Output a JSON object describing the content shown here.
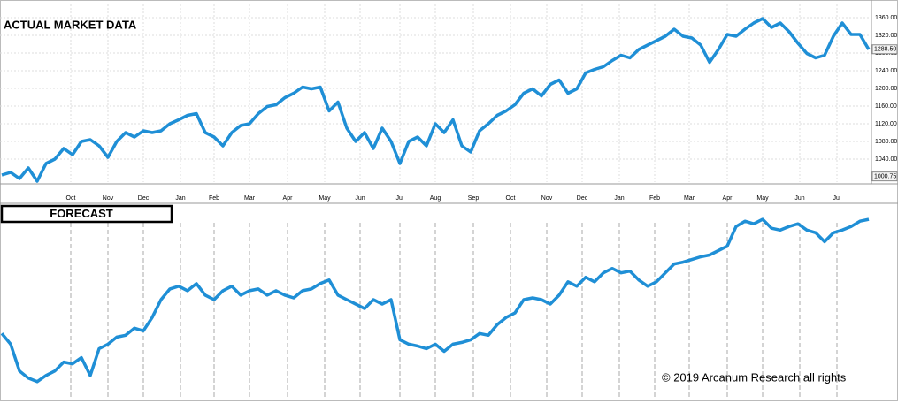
{
  "chart_data": [
    {
      "type": "line",
      "title": "ACTUAL MARKET DATA",
      "color": "#1f8fd6",
      "values": [
        1004,
        1010,
        996,
        1020,
        990,
        1030,
        1040,
        1064,
        1050,
        1080,
        1084,
        1070,
        1044,
        1080,
        1100,
        1090,
        1104,
        1100,
        1104,
        1120,
        1129,
        1139,
        1143,
        1100,
        1090,
        1070,
        1100,
        1116,
        1120,
        1143,
        1159,
        1163,
        1179,
        1189,
        1203,
        1199,
        1203,
        1149,
        1169,
        1110,
        1080,
        1100,
        1064,
        1110,
        1080,
        1030,
        1080,
        1090,
        1070,
        1120,
        1100,
        1129,
        1070,
        1056,
        1104,
        1120,
        1139,
        1149,
        1163,
        1189,
        1199,
        1183,
        1209,
        1219,
        1189,
        1199,
        1235,
        1243,
        1249,
        1263,
        1275,
        1269,
        1288,
        1298,
        1308,
        1318,
        1334,
        1318,
        1314,
        1298,
        1259,
        1288,
        1322,
        1318,
        1334,
        1348,
        1358,
        1338,
        1348,
        1328,
        1302,
        1279,
        1269,
        1275,
        1318,
        1348,
        1322,
        1322,
        1288
      ],
      "xlim": [
        -0.2,
        98.3
      ],
      "ylim": [
        988,
        1390
      ],
      "yticks": [
        {
          "value": 1040,
          "label": "1040.00"
        },
        {
          "value": 1080,
          "label": "1080.00"
        },
        {
          "value": 1120,
          "label": "1120.00"
        },
        {
          "value": 1160,
          "label": "1160.00"
        },
        {
          "value": 1200,
          "label": "1200.00"
        },
        {
          "value": 1240,
          "label": "1240.00"
        },
        {
          "value": 1280,
          "label": "1280.00"
        },
        {
          "value": 1320,
          "label": "1320.00"
        },
        {
          "value": 1360,
          "label": "1360.00"
        }
      ],
      "xticks": [
        {
          "value": 7.8,
          "label": "Oct"
        },
        {
          "value": 12.0,
          "label": "Nov"
        },
        {
          "value": 16.0,
          "label": "Dec"
        },
        {
          "value": 20.2,
          "label": "Jan"
        },
        {
          "value": 24.0,
          "label": "Feb"
        },
        {
          "value": 28.0,
          "label": "Mar"
        },
        {
          "value": 32.3,
          "label": "Apr"
        },
        {
          "value": 36.5,
          "label": "May"
        },
        {
          "value": 40.5,
          "label": "Jun"
        },
        {
          "value": 45.0,
          "label": "Jul"
        },
        {
          "value": 49.0,
          "label": "Aug"
        },
        {
          "value": 53.3,
          "label": "Sep"
        },
        {
          "value": 57.5,
          "label": "Oct"
        },
        {
          "value": 61.6,
          "label": "Nov"
        },
        {
          "value": 65.6,
          "label": "Dec"
        },
        {
          "value": 69.8,
          "label": "Jan"
        },
        {
          "value": 73.8,
          "label": "Feb"
        },
        {
          "value": 77.7,
          "label": "Mar"
        },
        {
          "value": 82.0,
          "label": "Apr"
        },
        {
          "value": 86.0,
          "label": "May"
        },
        {
          "value": 90.2,
          "label": "Jun"
        },
        {
          "value": 94.4,
          "label": "Jul"
        }
      ],
      "price_labels": [
        {
          "value": 1288.5,
          "label": "1288.50"
        },
        {
          "value": 1000.75,
          "label": "1000.75"
        }
      ],
      "grid": true
    },
    {
      "type": "line",
      "title": "FORECAST",
      "color": "#1f8fd6",
      "values": [
        72,
        60,
        30,
        22,
        18,
        25,
        30,
        40,
        38,
        45,
        25,
        55,
        60,
        68,
        70,
        78,
        75,
        90,
        110,
        122,
        125,
        120,
        128,
        115,
        110,
        120,
        125,
        115,
        120,
        122,
        115,
        120,
        115,
        112,
        120,
        122,
        128,
        132,
        115,
        110,
        105,
        100,
        110,
        105,
        110,
        65,
        60,
        58,
        55,
        60,
        52,
        60,
        62,
        65,
        72,
        70,
        82,
        90,
        95,
        110,
        112,
        110,
        105,
        115,
        130,
        125,
        135,
        130,
        140,
        145,
        140,
        142,
        132,
        125,
        130,
        140,
        150,
        152,
        155,
        158,
        160,
        165,
        170,
        192,
        198,
        195,
        200,
        190,
        188,
        192,
        195,
        188,
        185,
        175,
        185,
        188,
        192,
        198,
        200
      ],
      "xlim": [
        -0.2,
        98.3
      ],
      "ylim": [
        0,
        215
      ],
      "annotation": "© 2019 Arcanum Research all rights"
    }
  ]
}
